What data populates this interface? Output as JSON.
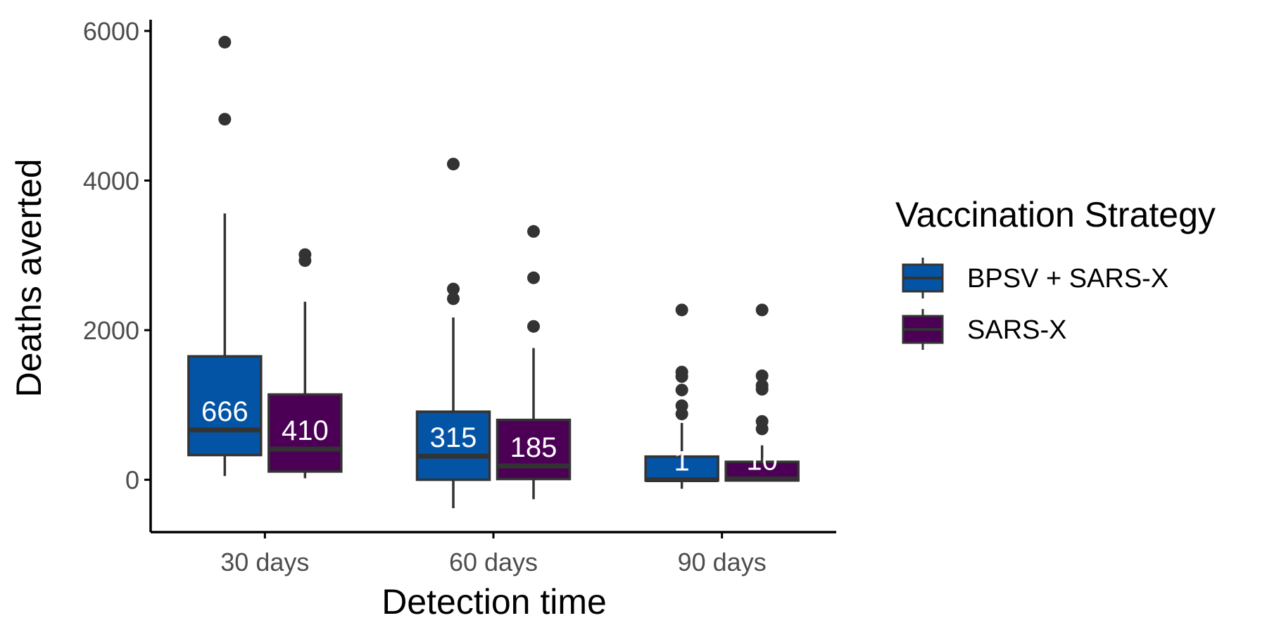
{
  "chart_data": {
    "type": "box",
    "xlabel": "Detection time",
    "ylabel": "Deaths averted",
    "categories": [
      "30 days",
      "60 days",
      "90 days"
    ],
    "ylim": [
      -700,
      6150
    ],
    "yticks": [
      0,
      2000,
      4000,
      6000
    ],
    "grid": false,
    "legend": {
      "title": "Vaccination Strategy",
      "position": "right"
    },
    "colors": {
      "BPSV + SARS-X": "#0454a6",
      "SARS-X": "#4b0055",
      "outline": "#333333",
      "axis": "#000000",
      "median_label": "#ffffff"
    },
    "series": [
      {
        "name": "BPSV + SARS-X",
        "boxes": [
          {
            "category": "30 days",
            "whisker_low": 50,
            "q1": 330,
            "median": 666,
            "q3": 1650,
            "whisker_high": 3560,
            "outliers": [
              4820,
              5850
            ],
            "label": "666"
          },
          {
            "category": "60 days",
            "whisker_low": -380,
            "q1": 0,
            "median": 315,
            "q3": 910,
            "whisker_high": 2170,
            "outliers": [
              2420,
              2550,
              4220
            ],
            "label": "315"
          },
          {
            "category": "90 days",
            "whisker_low": -120,
            "q1": -10,
            "median": 1,
            "q3": 310,
            "whisker_high": 760,
            "outliers": [
              880,
              990,
              1200,
              1380,
              1440,
              2270
            ],
            "label": "1"
          }
        ]
      },
      {
        "name": "SARS-X",
        "boxes": [
          {
            "category": "30 days",
            "whisker_low": 20,
            "q1": 110,
            "median": 410,
            "q3": 1140,
            "whisker_high": 2380,
            "outliers": [
              2930,
              3010
            ],
            "label": "410"
          },
          {
            "category": "60 days",
            "whisker_low": -260,
            "q1": 10,
            "median": 185,
            "q3": 800,
            "whisker_high": 1760,
            "outliers": [
              2050,
              2700,
              3320
            ],
            "label": "185"
          },
          {
            "category": "90 days",
            "whisker_low": -10,
            "q1": -10,
            "median": 10,
            "q3": 240,
            "whisker_high": 460,
            "outliers": [
              680,
              780,
              1210,
              1260,
              1390,
              2270
            ],
            "label": "10"
          }
        ]
      }
    ]
  }
}
